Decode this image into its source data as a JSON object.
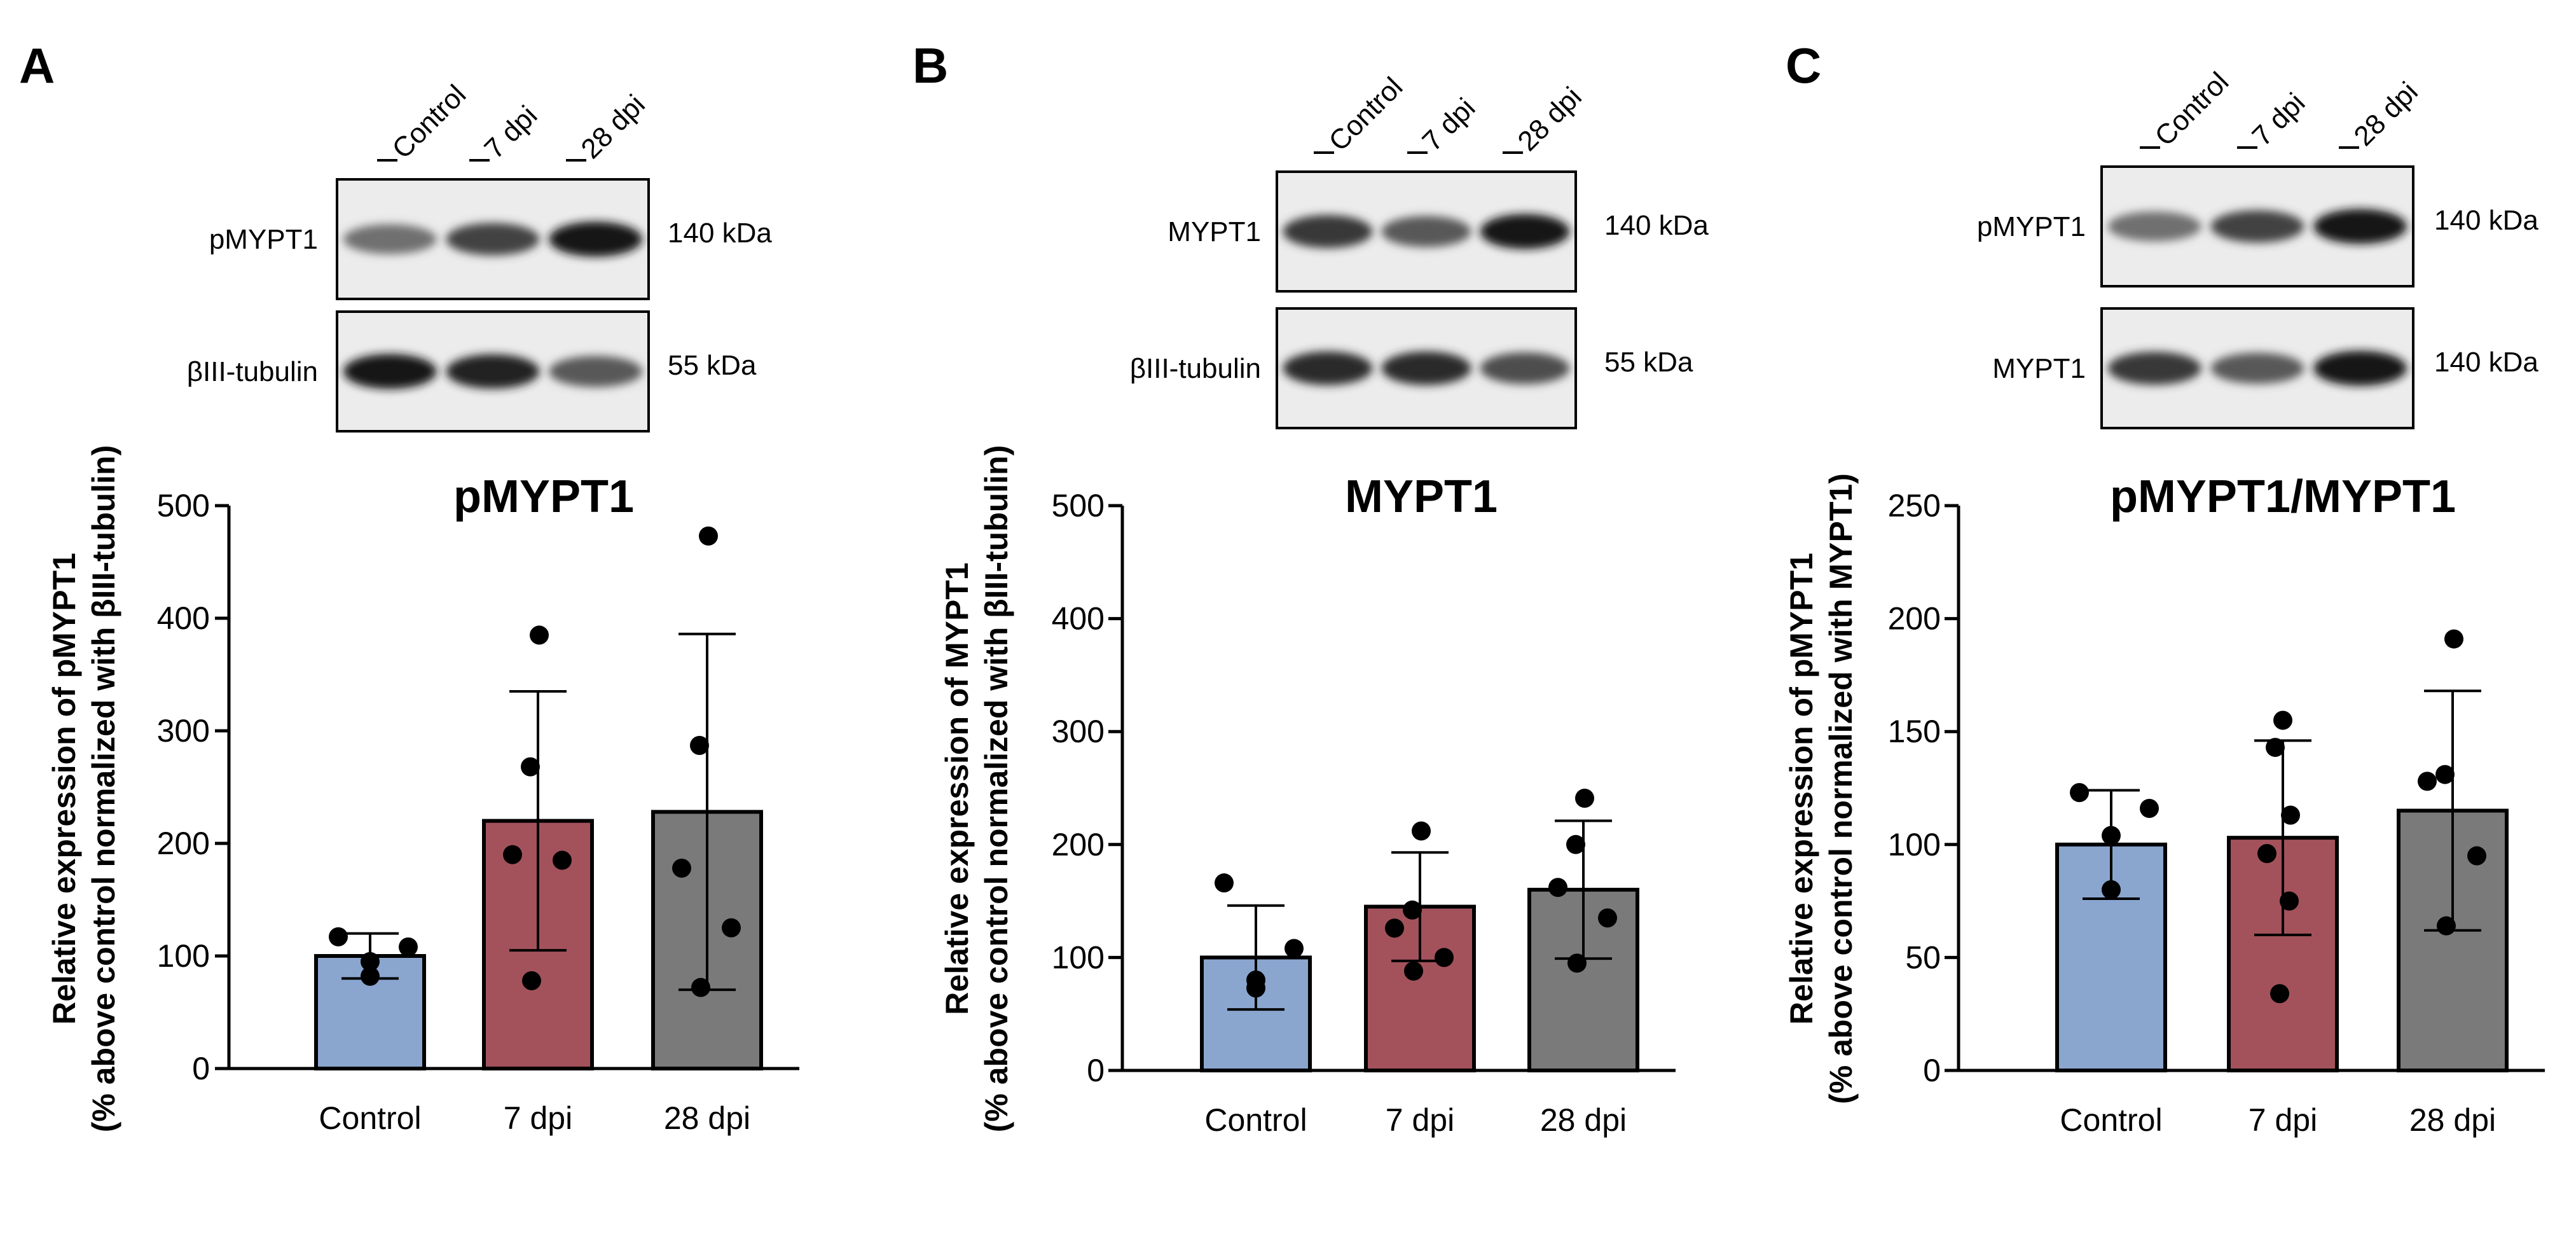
{
  "figure": {
    "panels": [
      {
        "letter": "A",
        "blot": {
          "lanes": [
            "Control",
            "7 dpi",
            "28 dpi"
          ],
          "rows": [
            {
              "protein": "pMYPT1",
              "kda": "140 kDa",
              "band_intensity": [
                0.55,
                0.75,
                0.95
              ]
            },
            {
              "protein": "βIII-tubulin",
              "kda": "55 kDa",
              "band_intensity": [
                0.95,
                0.9,
                0.65
              ]
            }
          ]
        }
      },
      {
        "letter": "B",
        "blot": {
          "lanes": [
            "Control",
            "7 dpi",
            "28 dpi"
          ],
          "rows": [
            {
              "protein": "MYPT1",
              "kda": "140 kDa",
              "band_intensity": [
                0.8,
                0.65,
                0.95
              ]
            },
            {
              "protein": "βIII-tubulin",
              "kda": "55 kDa",
              "band_intensity": [
                0.85,
                0.85,
                0.7
              ]
            }
          ]
        }
      },
      {
        "letter": "C",
        "blot": {
          "lanes": [
            "Control",
            "7 dpi",
            "28 dpi"
          ],
          "rows": [
            {
              "protein": "pMYPT1",
              "kda": "140 kDa",
              "band_intensity": [
                0.55,
                0.75,
                0.95
              ]
            },
            {
              "protein": "MYPT1",
              "kda": "140 kDa",
              "band_intensity": [
                0.8,
                0.65,
                0.95
              ]
            }
          ]
        }
      }
    ]
  },
  "chart_data": [
    {
      "type": "bar",
      "title": "pMYPT1",
      "categories": [
        "Control",
        "7 dpi",
        "28 dpi"
      ],
      "values": [
        100,
        220,
        228
      ],
      "sd": [
        20,
        115,
        158
      ],
      "points": [
        [
          117,
          108,
          82,
          95
        ],
        [
          385,
          268,
          190,
          185,
          78
        ],
        [
          473,
          287,
          178,
          125,
          72
        ]
      ],
      "colors": [
        "#8aa6cf",
        "#a3525c",
        "#7a7a7a"
      ],
      "ylim": [
        0,
        500
      ],
      "yticks": [
        0,
        100,
        200,
        300,
        400,
        500
      ],
      "ylabel_line1": "Relative expression of pMYPT1",
      "ylabel_line2": "(% above control normalized with βIII-tubulin)",
      "xlabel": ""
    },
    {
      "type": "bar",
      "title": "MYPT1",
      "categories": [
        "Control",
        "7 dpi",
        "28 dpi"
      ],
      "values": [
        100,
        145,
        160
      ],
      "sd": [
        46,
        48,
        61
      ],
      "points": [
        [
          166,
          108,
          80,
          73
        ],
        [
          212,
          142,
          126,
          100,
          88
        ],
        [
          241,
          200,
          162,
          135,
          95
        ]
      ],
      "colors": [
        "#8aa6cf",
        "#a3525c",
        "#7a7a7a"
      ],
      "ylim": [
        0,
        500
      ],
      "yticks": [
        0,
        100,
        200,
        300,
        400,
        500
      ],
      "ylabel_line1": "Relative expression of MYPT1",
      "ylabel_line2": "(% above control normalized with βIII-tubulin)",
      "xlabel": ""
    },
    {
      "type": "bar",
      "title": "pMYPT1/MYPT1",
      "categories": [
        "Control",
        "7 dpi",
        "28 dpi"
      ],
      "values": [
        100,
        103,
        115
      ],
      "sd": [
        24,
        43,
        53
      ],
      "points": [
        [
          123,
          116,
          104,
          80
        ],
        [
          155,
          143,
          113,
          96,
          75,
          34
        ],
        [
          191,
          131,
          128,
          95,
          64
        ]
      ],
      "colors": [
        "#8aa6cf",
        "#a3525c",
        "#7a7a7a"
      ],
      "ylim": [
        0,
        250
      ],
      "yticks": [
        0,
        50,
        100,
        150,
        200,
        250
      ],
      "ylabel_line1": "Relative expression of pMYPT1",
      "ylabel_line2": "(% above control normalized with MYPT1)",
      "xlabel": ""
    }
  ]
}
